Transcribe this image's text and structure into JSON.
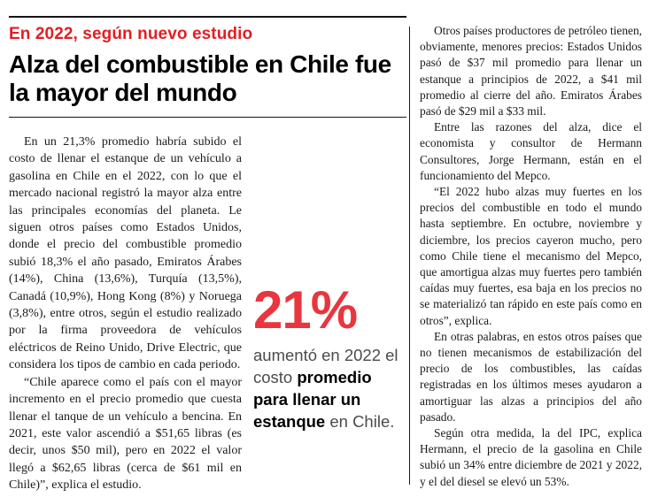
{
  "article": {
    "kicker": "En 2022, según nuevo estudio",
    "headline": "Alza del combustible en Chile fue la mayor del mundo",
    "left_column": {
      "p1": "En un 21,3% promedio habría subido el costo de llenar el estanque de un vehículo a gasolina en Chile en el 2022, con lo que el mercado nacional registró la mayor alza entre las principales economías del planeta. Le siguen otros países como Estados Unidos, donde el precio del combustible promedio subió 18,3% el año pasado, Emiratos Árabes (14%), China (13,6%), Turquía (13,5%), Canadá (10,9%), Hong Kong (8%) y Noruega (3,8%), entre otros, según el estudio realizado por la firma proveedora de vehículos eléctricos de Reino Unido, Drive Electric, que considera los tipos de cambio en cada periodo.",
      "p2": "“Chile aparece como el país con el mayor incremento en el precio promedio que cuesta llenar el tanque de un vehículo a bencina. En 2021, este valor ascendió a $51,65 libras (es decir, unos $50 mil), pero en 2022 el valor llegó a $62,65 libras (cerca de $61 mil en Chile)”, explica el estudio."
    },
    "callout": {
      "figure": "21%",
      "caption_pre": "aumentó en 2022 el costo ",
      "caption_bold": "promedio para llenar un estanque",
      "caption_post": " en Chile."
    },
    "right_column": {
      "p1": "Otros países productores de petróleo tienen, obviamente, menores precios: Estados Unidos pasó de $37 mil promedio para llenar un estanque a principios de 2022, a $41 mil promedio al cierre del año. Emiratos Árabes pasó de $29 mil a $33 mil.",
      "p2": "Entre las razones del alza, dice el economista y consultor de Hermann Consultores, Jorge Hermann, están en el funcionamiento del Mepco.",
      "p3": "“El 2022 hubo alzas muy fuertes en los precios del combustible en todo el mundo hasta septiembre. En octubre, noviembre y diciembre, los precios cayeron mucho, pero como Chile tiene el mecanismo del Mepco, que amortigua alzas muy fuertes pero también caídas muy fuertes, esa baja en los precios no se materializó tan rápido en este país como en otros”, explica.",
      "p4": "En otras palabras, en estos otros países que no tienen mecanismos de estabilización del precio de los combustibles, las caídas registradas en los últimos meses ayudaron a amortiguar las alzas a principios del año pasado.",
      "p5": "Según otra medida, la del IPC, explica Hermann, el precio de la gasolina en Chile subió un 34% entre diciembre de 2021 y 2022, y el del diesel se elevó un 53%."
    },
    "colors": {
      "accent_red": "#e31e24",
      "figure_red": "#e8363e"
    }
  }
}
